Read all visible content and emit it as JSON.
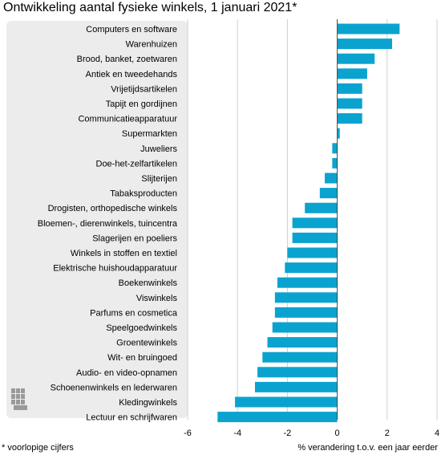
{
  "title": "Ontwikkeling aantal fysieke winkels, 1 januari 2021*",
  "footnote": "* voorlopige cijfers",
  "logo_text": "cbs",
  "colors": {
    "bar": "#0aa3d0",
    "grid": "#cfcfcf",
    "zero_line": "#444444",
    "panel": "#ececec"
  },
  "chart_data": {
    "type": "bar",
    "orientation": "horizontal",
    "title": "Ontwikkeling aantal fysieke winkels, 1 januari 2021*",
    "xlabel": "% verandering t.o.v. een jaar eerder",
    "ylabel": "",
    "xlim": [
      -6,
      4
    ],
    "xticks": [
      -6,
      -4,
      -2,
      0,
      2,
      4
    ],
    "grid": true,
    "categories": [
      "Computers en software",
      "Warenhuizen",
      "Brood, banket, zoetwaren",
      "Antiek en tweedehands",
      "Vrijetijdsartikelen",
      "Tapijt en gordijnen",
      "Communicatieapparatuur",
      "Supermarkten",
      "Juweliers",
      "Doe-het-zelfartikelen",
      "Slijterijen",
      "Tabaksproducten",
      "Drogisten, orthopedische winkels",
      "Bloemen-, dierenwinkels, tuincentra",
      "Slagerijen en poeliers",
      "Winkels in stoffen en textiel",
      "Elektrische huishoudapparatuur",
      "Boekenwinkels",
      "Viswinkels",
      "Parfums en cosmetica",
      "Speelgoedwinkels",
      "Groentewinkels",
      "Wit- en bruingoed",
      "Audio- en video-opnamen",
      "Schoenenwinkels en lederwaren",
      "Kledingwinkels",
      "Lectuur en schrijfwaren"
    ],
    "values": [
      2.5,
      2.2,
      1.5,
      1.2,
      1.0,
      1.0,
      1.0,
      0.1,
      -0.2,
      -0.2,
      -0.5,
      -0.7,
      -1.3,
      -1.8,
      -1.8,
      -2.0,
      -2.1,
      -2.4,
      -2.5,
      -2.5,
      -2.6,
      -2.8,
      -3.0,
      -3.2,
      -3.3,
      -4.1,
      -4.8
    ]
  }
}
